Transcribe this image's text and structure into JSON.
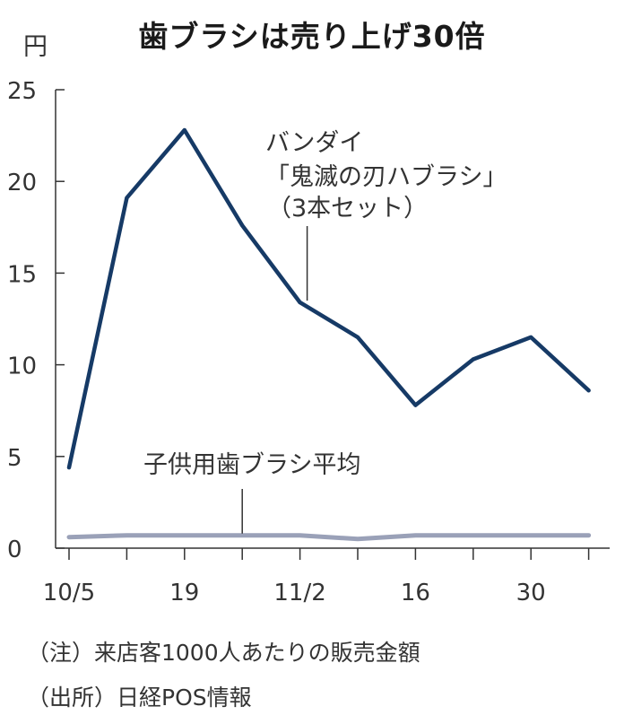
{
  "chart_data": {
    "type": "line",
    "title": "歯ブラシは売り上げ30倍",
    "unit": "円",
    "ylim": [
      0,
      25
    ],
    "yticks": [
      "0",
      "5",
      "10",
      "15",
      "20",
      "25"
    ],
    "x_categories": [
      "10/5",
      "",
      "19",
      "",
      "11/2",
      "",
      "16",
      "",
      "30",
      ""
    ],
    "x_tick_labels": [
      "10/5",
      "19",
      "11/2",
      "16",
      "30"
    ],
    "series": [
      {
        "name_lines": [
          "バンダイ",
          "「鬼滅の刃ハブラシ」",
          "（3本セット）"
        ],
        "color": "#163a66",
        "values": [
          4.4,
          19.1,
          22.8,
          17.6,
          13.4,
          11.5,
          7.8,
          10.3,
          11.5,
          8.6
        ]
      },
      {
        "name_lines": [
          "子供用歯ブラシ平均"
        ],
        "color": "#9aa1b8",
        "values": [
          0.6,
          0.7,
          0.7,
          0.7,
          0.7,
          0.5,
          0.7,
          0.7,
          0.7,
          0.7
        ]
      }
    ],
    "notes": [
      "（注）来店客1000人あたりの販売金額",
      "（出所）日経POS情報"
    ]
  }
}
